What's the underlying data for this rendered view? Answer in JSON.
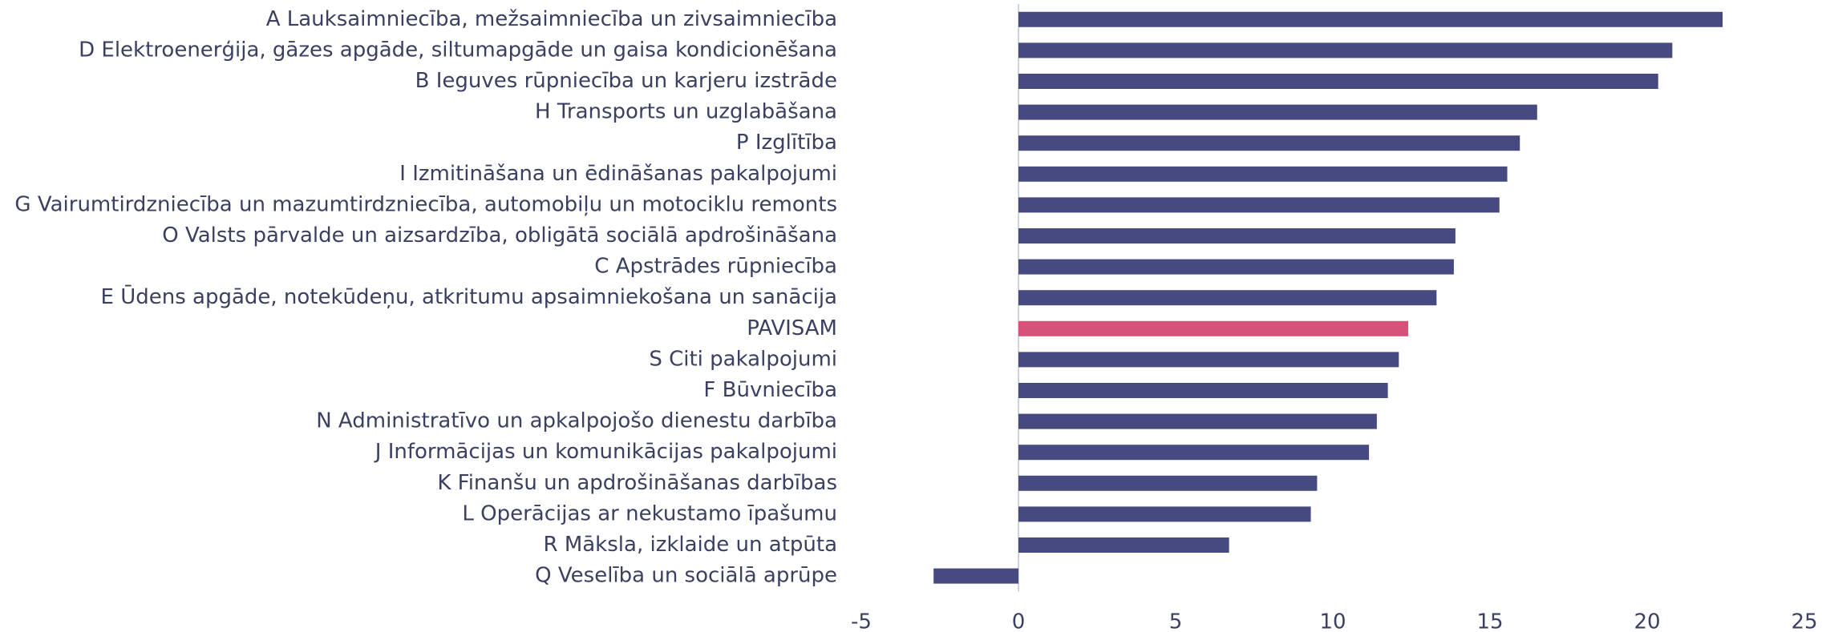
{
  "chart_data": {
    "type": "barh",
    "categories": [
      "A Lauksaimniecība, mežsaimniecība un zivsaimniecība",
      "D Elektroenerģija, gāzes apgāde, siltumapgāde un gaisa kondicionēšana",
      "B Ieguves rūpniecība un karjeru izstrāde",
      "H Transports un uzglabāšana",
      "P Izglītība",
      "I Izmitināšana un ēdināšanas pakalpojumi",
      "G Vairumtirdzniecība un mazumtirdzniecība, automobiļu un motociklu remonts",
      "O Valsts pārvalde un aizsardzība, obligātā sociālā apdrošināšana",
      "C Apstrādes rūpniecība",
      "E Ūdens apgāde, notekūdeņu, atkritumu apsaimniekošana un sanācija",
      "PAVISAM",
      "S Citi pakalpojumi",
      "F Būvniecība",
      "N Administratīvo un apkalpojošo dienestu darbība",
      "J Informācijas un komunikācijas pakalpojumi",
      "K Finanšu un apdrošināšanas darbības",
      "L Operācijas ar nekustamo īpašumu",
      "R Māksla, izklaide un atpūta",
      "Q Veselība un sociālā aprūpe"
    ],
    "values": [
      22.4,
      20.8,
      20.35,
      16.5,
      15.95,
      15.55,
      15.3,
      13.9,
      13.85,
      13.3,
      12.4,
      12.1,
      11.75,
      11.4,
      11.15,
      9.5,
      9.3,
      6.7,
      -2.7
    ],
    "colors": [
      "#474a80",
      "#474a80",
      "#474a80",
      "#474a80",
      "#474a80",
      "#474a80",
      "#474a80",
      "#474a80",
      "#474a80",
      "#474a80",
      "#d6527a",
      "#474a80",
      "#474a80",
      "#474a80",
      "#474a80",
      "#474a80",
      "#474a80",
      "#474a80",
      "#474a80"
    ],
    "xlim": [
      -5,
      25
    ],
    "xticks": [
      -5,
      0,
      5,
      10,
      15,
      20,
      25
    ]
  }
}
